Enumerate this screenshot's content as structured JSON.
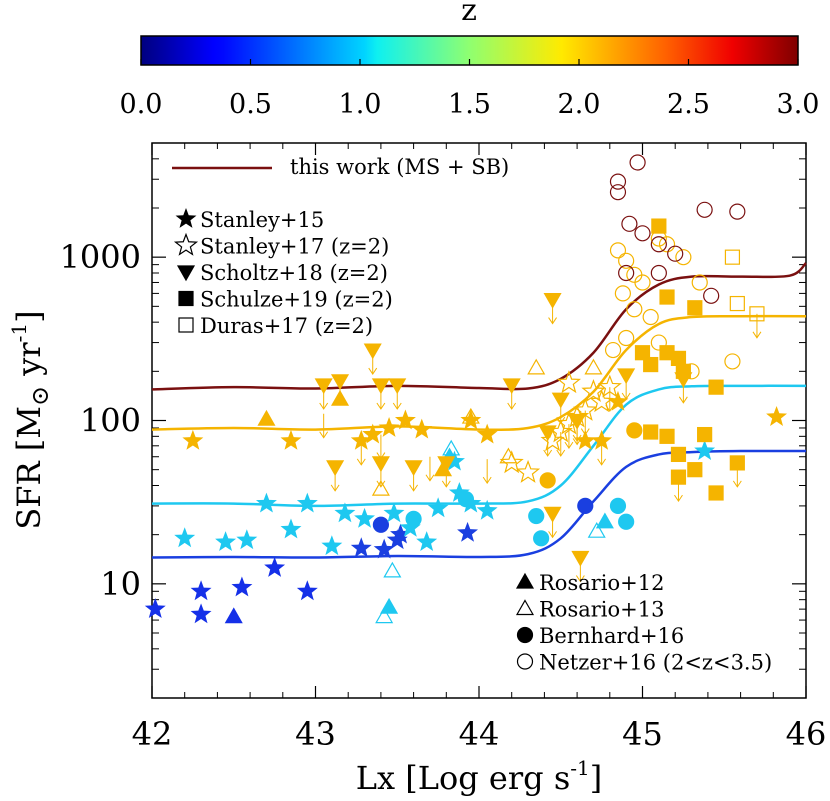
{
  "colorbar": {
    "title": "z",
    "ticks": [
      "0.0",
      "0.5",
      "1.0",
      "1.5",
      "2.0",
      "2.5",
      "3.0"
    ],
    "range": [
      0,
      3
    ]
  },
  "axes": {
    "xlabel": "Lx [Log erg s",
    "xlabel_sup": "-1",
    "xlabel_end": "]",
    "ylabel_pre": "SFR [M",
    "ylabel_mid": " yr",
    "ylabel_sup": "-1",
    "ylabel_end": "]",
    "xticks": [
      "42",
      "43",
      "44",
      "45",
      "46"
    ],
    "yticks": [
      "10",
      "100",
      "1000"
    ]
  },
  "legend_line": {
    "label": "this work (MS + SB)",
    "color": "#7a1010"
  },
  "legend_left": [
    {
      "symbol": "star-filled",
      "label": "Stanley+15"
    },
    {
      "symbol": "star-open",
      "label": "Stanley+17 (z=2)"
    },
    {
      "symbol": "tri-down-filled",
      "label": "Scholtz+18 (z=2)"
    },
    {
      "symbol": "square-filled",
      "label": "Schulze+19 (z=2)"
    },
    {
      "symbol": "square-open",
      "label": "Duras+17 (z=2)"
    }
  ],
  "legend_right": [
    {
      "symbol": "tri-up-filled",
      "label": "Rosario+12"
    },
    {
      "symbol": "tri-up-open",
      "label": "Rosario+13"
    },
    {
      "symbol": "circle-filled",
      "label": "Bernhard+16"
    },
    {
      "symbol": "circle-open",
      "label": "Netzer+16 (2<z<3.5)"
    }
  ],
  "chart_data": {
    "type": "scatter",
    "xlim": [
      42,
      46
    ],
    "ylim": [
      2,
      5000
    ],
    "yscale": "log",
    "colors": {
      "z3": "#7a1010",
      "z2": "#f5b400",
      "z1": "#1ec8f0",
      "z05": "#1a3fe0",
      "z03": "#1530e8"
    },
    "lines": [
      {
        "z": 3.0,
        "color": "#7a1010",
        "x": [
          42,
          42.5,
          43,
          43.5,
          44,
          44.3,
          44.5,
          44.7,
          44.9,
          45.1,
          45.3,
          45.6,
          45.9,
          46.0
        ],
        "y": [
          155,
          160,
          157,
          163,
          158,
          157,
          180,
          260,
          480,
          680,
          760,
          760,
          770,
          920
        ]
      },
      {
        "z": 2.0,
        "color": "#f5b400",
        "x": [
          42,
          42.5,
          43,
          43.5,
          44,
          44.3,
          44.5,
          44.7,
          44.9,
          45.1,
          45.3,
          45.6,
          46.0
        ],
        "y": [
          88,
          90,
          88,
          92,
          88,
          90,
          105,
          150,
          270,
          390,
          430,
          435,
          435
        ]
      },
      {
        "z": 1.0,
        "color": "#1ec8f0",
        "x": [
          42,
          42.5,
          43,
          43.5,
          44,
          44.3,
          44.5,
          44.7,
          44.9,
          45.1,
          45.3,
          45.6,
          46.0
        ],
        "y": [
          31,
          31,
          30,
          31,
          31,
          32,
          40,
          70,
          125,
          155,
          162,
          163,
          163
        ]
      },
      {
        "z": 0.5,
        "color": "#1a3fe0",
        "x": [
          42,
          42.5,
          43,
          43.5,
          44,
          44.3,
          44.5,
          44.7,
          44.9,
          45.1,
          45.3,
          45.6,
          46.0
        ],
        "y": [
          14.5,
          14.6,
          14.5,
          14.8,
          14.6,
          15.2,
          19,
          32,
          52,
          62,
          64,
          65,
          65
        ]
      }
    ],
    "points": [
      {
        "m": "star-filled",
        "c": "z03",
        "x": 42.02,
        "y": 7
      },
      {
        "m": "star-filled",
        "c": "z03",
        "x": 42.3,
        "y": 9
      },
      {
        "m": "star-filled",
        "c": "z03",
        "x": 42.3,
        "y": 6.5
      },
      {
        "m": "star-filled",
        "c": "z03",
        "x": 42.55,
        "y": 9.5
      },
      {
        "m": "star-filled",
        "c": "z03",
        "x": 42.75,
        "y": 12.5
      },
      {
        "m": "star-filled",
        "c": "z03",
        "x": 42.95,
        "y": 9
      },
      {
        "m": "tri-up-filled",
        "c": "z03",
        "x": 42.5,
        "y": 6.3
      },
      {
        "m": "star-filled",
        "c": "z05",
        "x": 43.28,
        "y": 16.5
      },
      {
        "m": "star-filled",
        "c": "z05",
        "x": 43.42,
        "y": 16.2
      },
      {
        "m": "star-filled",
        "c": "z05",
        "x": 43.5,
        "y": 18.5
      },
      {
        "m": "star-filled",
        "c": "z05",
        "x": 43.52,
        "y": 20
      },
      {
        "m": "star-filled",
        "c": "z05",
        "x": 43.93,
        "y": 20.5
      },
      {
        "m": "circle-filled",
        "c": "z05",
        "x": 43.4,
        "y": 23
      },
      {
        "m": "circle-filled",
        "c": "z05",
        "x": 44.65,
        "y": 30
      },
      {
        "m": "star-filled",
        "c": "z1",
        "x": 42.2,
        "y": 19
      },
      {
        "m": "star-filled",
        "c": "z1",
        "x": 42.45,
        "y": 18
      },
      {
        "m": "star-filled",
        "c": "z1",
        "x": 42.58,
        "y": 18.5
      },
      {
        "m": "star-filled",
        "c": "z1",
        "x": 42.7,
        "y": 31
      },
      {
        "m": "star-filled",
        "c": "z1",
        "x": 42.85,
        "y": 21.5
      },
      {
        "m": "star-filled",
        "c": "z1",
        "x": 42.95,
        "y": 31
      },
      {
        "m": "star-filled",
        "c": "z1",
        "x": 43.1,
        "y": 17
      },
      {
        "m": "star-filled",
        "c": "z1",
        "x": 43.18,
        "y": 27
      },
      {
        "m": "star-filled",
        "c": "z1",
        "x": 43.3,
        "y": 25
      },
      {
        "m": "star-filled",
        "c": "z1",
        "x": 43.48,
        "y": 27
      },
      {
        "m": "star-filled",
        "c": "z1",
        "x": 43.58,
        "y": 22
      },
      {
        "m": "star-filled",
        "c": "z1",
        "x": 43.68,
        "y": 18
      },
      {
        "m": "star-filled",
        "c": "z1",
        "x": 43.75,
        "y": 29
      },
      {
        "m": "star-filled",
        "c": "z1",
        "x": 43.88,
        "y": 36
      },
      {
        "m": "star-filled",
        "c": "z1",
        "x": 43.95,
        "y": 31
      },
      {
        "m": "star-filled",
        "c": "z1",
        "x": 44.05,
        "y": 28
      },
      {
        "m": "star-filled",
        "c": "z1",
        "x": 45.38,
        "y": 65
      },
      {
        "m": "star-filled",
        "c": "z1",
        "x": 43.85,
        "y": 56
      },
      {
        "m": "circle-filled",
        "c": "z1",
        "x": 43.6,
        "y": 25
      },
      {
        "m": "circle-filled",
        "c": "z1",
        "x": 43.92,
        "y": 33
      },
      {
        "m": "circle-filled",
        "c": "z1",
        "x": 44.35,
        "y": 26
      },
      {
        "m": "circle-filled",
        "c": "z1",
        "x": 44.38,
        "y": 19
      },
      {
        "m": "circle-filled",
        "c": "z1",
        "x": 44.85,
        "y": 30
      },
      {
        "m": "circle-filled",
        "c": "z1",
        "x": 44.9,
        "y": 24
      },
      {
        "m": "tri-up-filled",
        "c": "z1",
        "x": 43.45,
        "y": 7.2
      },
      {
        "m": "tri-up-filled",
        "c": "z1",
        "x": 44.77,
        "y": 24
      },
      {
        "m": "tri-up-filled",
        "c": "z1",
        "x": 43.82,
        "y": 60
      },
      {
        "m": "tri-up-open",
        "c": "z1",
        "x": 43.42,
        "y": 6.3
      },
      {
        "m": "tri-up-open",
        "c": "z1",
        "x": 43.47,
        "y": 12
      },
      {
        "m": "tri-up-open",
        "c": "z1",
        "x": 43.83,
        "y": 67
      },
      {
        "m": "tri-up-open",
        "c": "z1",
        "x": 44.72,
        "y": 21
      },
      {
        "m": "star-filled",
        "c": "z2",
        "x": 42.25,
        "y": 75
      },
      {
        "m": "star-filled",
        "c": "z2",
        "x": 42.85,
        "y": 75
      },
      {
        "m": "star-filled",
        "c": "z2",
        "x": 43.28,
        "y": 75
      },
      {
        "m": "star-filled",
        "c": "z2",
        "x": 43.35,
        "y": 82
      },
      {
        "m": "star-filled",
        "c": "z2",
        "x": 43.45,
        "y": 90
      },
      {
        "m": "star-filled",
        "c": "z2",
        "x": 43.55,
        "y": 100
      },
      {
        "m": "star-filled",
        "c": "z2",
        "x": 43.65,
        "y": 88
      },
      {
        "m": "star-filled",
        "c": "z2",
        "x": 43.95,
        "y": 100
      },
      {
        "m": "star-filled",
        "c": "z2",
        "x": 44.05,
        "y": 82
      },
      {
        "m": "star-filled",
        "c": "z2",
        "x": 44.65,
        "y": 75
      },
      {
        "m": "star-filled",
        "c": "z2",
        "x": 44.75,
        "y": 75
      },
      {
        "m": "star-filled",
        "c": "z2",
        "x": 44.85,
        "y": 130
      },
      {
        "m": "star-filled",
        "c": "z2",
        "x": 45.82,
        "y": 105
      },
      {
        "m": "tri-up-filled",
        "c": "z2",
        "x": 42.7,
        "y": 102
      },
      {
        "m": "tri-up-filled",
        "c": "z2",
        "x": 43.15,
        "y": 135
      },
      {
        "m": "tri-up-filled",
        "c": "z2",
        "x": 43.78,
        "y": 50
      },
      {
        "m": "tri-up-open",
        "c": "z2",
        "x": 43.4,
        "y": 38
      },
      {
        "m": "tri-up-open",
        "c": "z2",
        "x": 43.95,
        "y": 105
      },
      {
        "m": "tri-up-open",
        "c": "z2",
        "x": 44.18,
        "y": 60
      },
      {
        "m": "tri-up-open",
        "c": "z2",
        "x": 44.35,
        "y": 210
      },
      {
        "m": "tri-up-open",
        "c": "z2",
        "x": 44.7,
        "y": 210
      },
      {
        "m": "tri-down-filled",
        "c": "z2",
        "x": 43.05,
        "y": 165
      },
      {
        "m": "tri-down-filled",
        "c": "z2",
        "x": 43.15,
        "y": 175
      },
      {
        "m": "tri-down-filled",
        "c": "z2",
        "x": 43.4,
        "y": 165
      },
      {
        "m": "tri-down-filled",
        "c": "z2",
        "x": 43.5,
        "y": 165
      },
      {
        "m": "tri-down-filled",
        "c": "z2",
        "x": 43.35,
        "y": 270
      },
      {
        "m": "tri-down-filled",
        "c": "z2",
        "x": 43.12,
        "y": 52
      },
      {
        "m": "tri-down-filled",
        "c": "z2",
        "x": 43.4,
        "y": 55
      },
      {
        "m": "tri-down-filled",
        "c": "z2",
        "x": 43.6,
        "y": 52
      },
      {
        "m": "tri-down-filled",
        "c": "z2",
        "x": 43.8,
        "y": 55
      },
      {
        "m": "tri-down-filled",
        "c": "z2",
        "x": 44.2,
        "y": 165
      },
      {
        "m": "tri-down-filled",
        "c": "z2",
        "x": 44.45,
        "y": 550
      },
      {
        "m": "tri-down-filled",
        "c": "z2",
        "x": 44.5,
        "y": 135
      },
      {
        "m": "tri-down-filled",
        "c": "z2",
        "x": 44.6,
        "y": 100
      },
      {
        "m": "tri-down-filled",
        "c": "z2",
        "x": 44.62,
        "y": 14.5
      },
      {
        "m": "tri-down-filled",
        "c": "z2",
        "x": 44.45,
        "y": 27
      },
      {
        "m": "tri-down-filled",
        "c": "z2",
        "x": 44.9,
        "y": 190
      },
      {
        "m": "tri-down-filled",
        "c": "z2",
        "x": 44.42,
        "y": 85
      },
      {
        "m": "tri-down-filled",
        "c": "z2",
        "x": 45.25,
        "y": 180
      },
      {
        "m": "star-open",
        "c": "z2",
        "x": 44.3,
        "y": 48
      },
      {
        "m": "star-open",
        "c": "z2",
        "x": 44.45,
        "y": 75
      },
      {
        "m": "star-open",
        "c": "z2",
        "x": 44.5,
        "y": 85
      },
      {
        "m": "star-open",
        "c": "z2",
        "x": 44.55,
        "y": 95
      },
      {
        "m": "star-open",
        "c": "z2",
        "x": 44.6,
        "y": 105
      },
      {
        "m": "star-open",
        "c": "z2",
        "x": 44.65,
        "y": 115
      },
      {
        "m": "star-open",
        "c": "z2",
        "x": 44.7,
        "y": 150
      },
      {
        "m": "star-open",
        "c": "z2",
        "x": 44.75,
        "y": 130
      },
      {
        "m": "star-open",
        "c": "z2",
        "x": 44.8,
        "y": 160
      },
      {
        "m": "star-open",
        "c": "z2",
        "x": 44.55,
        "y": 170
      },
      {
        "m": "star-open",
        "c": "z2",
        "x": 44.2,
        "y": 55
      },
      {
        "m": "square-filled",
        "c": "z2",
        "x": 45.0,
        "y": 260
      },
      {
        "m": "square-filled",
        "c": "z2",
        "x": 45.05,
        "y": 220
      },
      {
        "m": "square-filled",
        "c": "z2",
        "x": 45.1,
        "y": 1550
      },
      {
        "m": "square-filled",
        "c": "z2",
        "x": 45.15,
        "y": 570
      },
      {
        "m": "square-filled",
        "c": "z2",
        "x": 45.15,
        "y": 260
      },
      {
        "m": "square-filled",
        "c": "z2",
        "x": 45.22,
        "y": 240
      },
      {
        "m": "square-filled",
        "c": "z2",
        "x": 45.25,
        "y": 200
      },
      {
        "m": "square-filled",
        "c": "z2",
        "x": 45.32,
        "y": 490
      },
      {
        "m": "square-filled",
        "c": "z2",
        "x": 45.45,
        "y": 160
      },
      {
        "m": "square-filled",
        "c": "z2",
        "x": 45.05,
        "y": 85
      },
      {
        "m": "square-filled",
        "c": "z2",
        "x": 45.15,
        "y": 80
      },
      {
        "m": "square-filled",
        "c": "z2",
        "x": 45.22,
        "y": 62
      },
      {
        "m": "square-filled",
        "c": "z2",
        "x": 45.22,
        "y": 45
      },
      {
        "m": "square-filled",
        "c": "z2",
        "x": 45.32,
        "y": 50
      },
      {
        "m": "square-filled",
        "c": "z2",
        "x": 45.38,
        "y": 82
      },
      {
        "m": "square-filled",
        "c": "z2",
        "x": 45.45,
        "y": 36
      },
      {
        "m": "square-filled",
        "c": "z2",
        "x": 45.58,
        "y": 55
      },
      {
        "m": "circle-filled",
        "c": "z2",
        "x": 44.95,
        "y": 87
      },
      {
        "m": "circle-filled",
        "c": "z2",
        "x": 44.42,
        "y": 43
      },
      {
        "m": "square-open",
        "c": "z2",
        "x": 45.55,
        "y": 1000
      },
      {
        "m": "square-open",
        "c": "z2",
        "x": 45.58,
        "y": 520
      },
      {
        "m": "square-open",
        "c": "z2",
        "x": 45.7,
        "y": 450
      },
      {
        "m": "circle-open",
        "c": "z2",
        "x": 44.85,
        "y": 1100
      },
      {
        "m": "circle-open",
        "c": "z2",
        "x": 44.9,
        "y": 950
      },
      {
        "m": "circle-open",
        "c": "z2",
        "x": 44.95,
        "y": 780
      },
      {
        "m": "circle-open",
        "c": "z2",
        "x": 45.0,
        "y": 700
      },
      {
        "m": "circle-open",
        "c": "z2",
        "x": 44.88,
        "y": 600
      },
      {
        "m": "circle-open",
        "c": "z2",
        "x": 44.95,
        "y": 480
      },
      {
        "m": "circle-open",
        "c": "z2",
        "x": 45.05,
        "y": 430
      },
      {
        "m": "circle-open",
        "c": "z2",
        "x": 45.1,
        "y": 1300
      },
      {
        "m": "circle-open",
        "c": "z2",
        "x": 45.15,
        "y": 1200
      },
      {
        "m": "circle-open",
        "c": "z2",
        "x": 45.25,
        "y": 1000
      },
      {
        "m": "circle-open",
        "c": "z2",
        "x": 45.35,
        "y": 700
      },
      {
        "m": "circle-open",
        "c": "z2",
        "x": 44.9,
        "y": 320
      },
      {
        "m": "circle-open",
        "c": "z2",
        "x": 45.1,
        "y": 300
      },
      {
        "m": "circle-open",
        "c": "z2",
        "x": 45.55,
        "y": 230
      },
      {
        "m": "circle-open",
        "c": "z2",
        "x": 44.82,
        "y": 270
      },
      {
        "m": "circle-open",
        "c": "z2",
        "x": 45.3,
        "y": 200
      },
      {
        "m": "circle-open",
        "c": "z3",
        "x": 44.85,
        "y": 2900
      },
      {
        "m": "circle-open",
        "c": "z3",
        "x": 44.85,
        "y": 2500
      },
      {
        "m": "circle-open",
        "c": "z3",
        "x": 44.97,
        "y": 3800
      },
      {
        "m": "circle-open",
        "c": "z3",
        "x": 44.92,
        "y": 1600
      },
      {
        "m": "circle-open",
        "c": "z3",
        "x": 45.0,
        "y": 1400
      },
      {
        "m": "circle-open",
        "c": "z3",
        "x": 45.1,
        "y": 1200
      },
      {
        "m": "circle-open",
        "c": "z3",
        "x": 44.9,
        "y": 800
      },
      {
        "m": "circle-open",
        "c": "z3",
        "x": 45.1,
        "y": 800
      },
      {
        "m": "circle-open",
        "c": "z3",
        "x": 45.2,
        "y": 1050
      },
      {
        "m": "circle-open",
        "c": "z3",
        "x": 45.38,
        "y": 1950
      },
      {
        "m": "circle-open",
        "c": "z3",
        "x": 45.58,
        "y": 1900
      },
      {
        "m": "circle-open",
        "c": "z3",
        "x": 45.42,
        "y": 580
      }
    ],
    "upper_limits": [
      [
        43.05,
        165
      ],
      [
        43.15,
        175
      ],
      [
        43.4,
        165
      ],
      [
        43.5,
        165
      ],
      [
        43.35,
        270
      ],
      [
        43.12,
        52
      ],
      [
        43.4,
        55
      ],
      [
        43.6,
        52
      ],
      [
        43.8,
        55
      ],
      [
        44.2,
        165
      ],
      [
        44.45,
        550
      ],
      [
        44.5,
        135
      ],
      [
        44.6,
        100
      ],
      [
        44.62,
        14.5
      ],
      [
        44.45,
        27
      ],
      [
        44.9,
        190
      ],
      [
        44.42,
        85
      ],
      [
        45.25,
        180
      ],
      [
        45.22,
        45
      ],
      [
        45.58,
        55
      ],
      [
        45.7,
        450
      ],
      [
        43.28,
        75
      ],
      [
        43.4,
        82
      ],
      [
        44.75,
        75
      ],
      [
        44.55,
        95
      ],
      [
        44.65,
        115
      ],
      [
        44.5,
        85
      ],
      [
        44.8,
        160
      ],
      [
        44.6,
        105
      ],
      [
        43.05,
        110
      ],
      [
        43.7,
        60
      ],
      [
        44.05,
        58
      ]
    ]
  }
}
